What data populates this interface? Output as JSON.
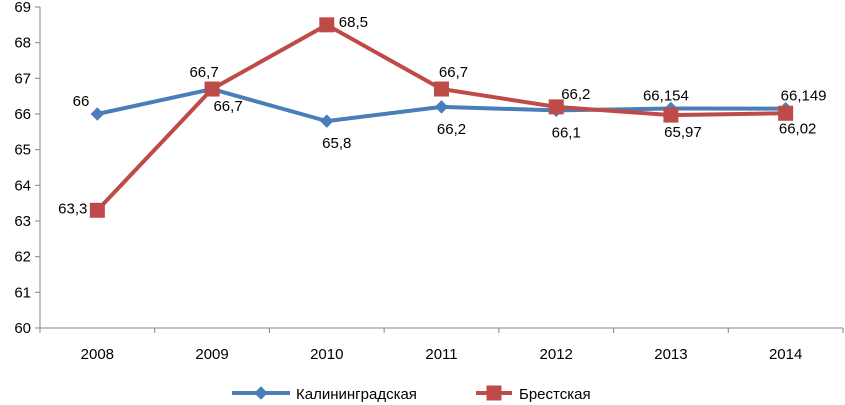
{
  "chart_data": {
    "type": "line",
    "title": "",
    "xlabel": "",
    "ylabel": "",
    "categories": [
      "2008",
      "2009",
      "2010",
      "2011",
      "2012",
      "2013",
      "2014"
    ],
    "ylim": [
      60,
      69
    ],
    "y_ticks": [
      "60",
      "61",
      "62",
      "63",
      "64",
      "65",
      "66",
      "67",
      "68",
      "69"
    ],
    "grid": false,
    "legend_position": "bottom",
    "series": [
      {
        "name": "Калининградская",
        "color": "#4a7ebb",
        "marker": "diamond",
        "values": [
          66,
          66.7,
          65.8,
          66.2,
          66.1,
          66.154,
          66.149
        ],
        "labels": [
          "66",
          "66,7",
          "65,8",
          "66,2",
          "66,1",
          "66,154",
          "66,149"
        ]
      },
      {
        "name": "Брестская",
        "color": "#be4b48",
        "marker": "square",
        "values": [
          63.3,
          66.7,
          68.5,
          66.7,
          66.2,
          65.97,
          66.02
        ],
        "labels": [
          "63,3",
          "66,7",
          "68,5",
          "66,7",
          "66,2",
          "65,97",
          "66,02"
        ]
      }
    ]
  }
}
